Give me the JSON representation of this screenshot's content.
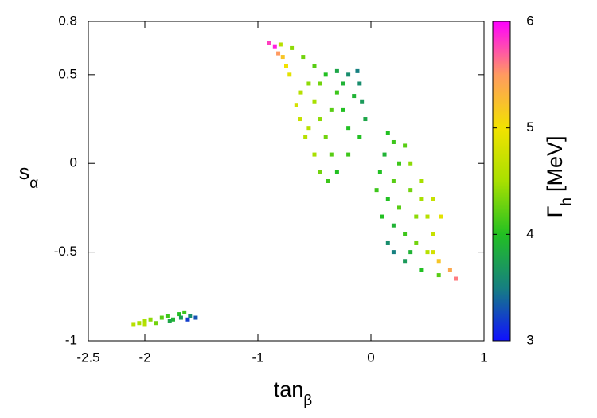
{
  "chart_data": {
    "type": "scatter",
    "xlabel": "tan",
    "xlabel_sub": "β",
    "ylabel": "s",
    "ylabel_sub": "α",
    "zlabel": "Γ",
    "zlabel_sub": "h",
    "zlabel_unit": "[MeV]",
    "xlim": [
      -2.5,
      1
    ],
    "xticks": [
      -2.5,
      -2,
      -1,
      0,
      1
    ],
    "ylim": [
      -1,
      0.8
    ],
    "yticks": [
      -1,
      -0.5,
      0,
      0.5,
      0.8
    ],
    "zlim": [
      3,
      6
    ],
    "zticks": [
      3,
      4,
      5,
      6
    ],
    "colormap": [
      {
        "value": 3,
        "color": "#1010ff"
      },
      {
        "value": 3.5,
        "color": "#168080"
      },
      {
        "value": 4,
        "color": "#22c022"
      },
      {
        "value": 4.5,
        "color": "#a8e000"
      },
      {
        "value": 5,
        "color": "#f2e200"
      },
      {
        "value": 5.5,
        "color": "#ff9a60"
      },
      {
        "value": 6,
        "color": "#ff00ff"
      }
    ],
    "series": [
      {
        "x": [
          -0.9,
          -0.85,
          -0.82,
          -0.78,
          -0.75,
          -0.72,
          -0.8,
          -0.7,
          -0.6,
          -0.5,
          -0.4,
          -0.3,
          -0.2,
          -0.12,
          -0.1,
          -0.08,
          -0.05,
          -0.1,
          -0.2,
          -0.3,
          -0.38,
          -0.45,
          -0.5,
          -0.58,
          -0.63,
          -0.66,
          -0.62,
          -0.55,
          -0.5,
          -0.45,
          -0.4,
          -0.35,
          -0.3,
          -0.25,
          -0.2,
          -0.35,
          -0.45,
          -0.15,
          -0.55,
          -0.25,
          0.15,
          0.2,
          0.3,
          0.35,
          0.45,
          0.55,
          0.62,
          0.55,
          0.5,
          0.6,
          0.7,
          0.75,
          0.6,
          0.45,
          0.3,
          0.2,
          0.15,
          0.1,
          0.05,
          0.08,
          0.12,
          0.2,
          0.25,
          0.3,
          0.4,
          0.35,
          0.25,
          0.4,
          0.5,
          0.15,
          0.45,
          0.2,
          0.35,
          0.55,
          -2.1,
          -2.05,
          -2.0,
          -1.95,
          -1.9,
          -1.85,
          -1.8,
          -1.75,
          -1.7,
          -1.65,
          -1.6,
          -1.55,
          -1.62,
          -1.68,
          -1.78,
          -2.0
        ],
        "y": [
          0.68,
          0.66,
          0.62,
          0.6,
          0.55,
          0.5,
          0.67,
          0.65,
          0.6,
          0.55,
          0.5,
          0.52,
          0.5,
          0.52,
          0.45,
          0.35,
          0.25,
          0.15,
          0.05,
          -0.05,
          -0.1,
          -0.05,
          0.05,
          0.15,
          0.25,
          0.33,
          0.4,
          0.45,
          0.35,
          0.25,
          0.15,
          0.3,
          0.4,
          0.3,
          0.2,
          0.05,
          0.45,
          0.38,
          0.2,
          0.45,
          0.17,
          0.12,
          0.1,
          0.0,
          -0.1,
          -0.2,
          -0.3,
          -0.4,
          -0.5,
          -0.55,
          -0.6,
          -0.65,
          -0.63,
          -0.6,
          -0.55,
          -0.5,
          -0.45,
          -0.3,
          -0.15,
          -0.05,
          0.05,
          -0.1,
          -0.25,
          -0.4,
          -0.3,
          -0.15,
          0.0,
          -0.45,
          -0.3,
          -0.2,
          -0.2,
          -0.35,
          -0.5,
          -0.5,
          -0.91,
          -0.9,
          -0.89,
          -0.88,
          -0.9,
          -0.87,
          -0.86,
          -0.88,
          -0.85,
          -0.84,
          -0.86,
          -0.87,
          -0.88,
          -0.87,
          -0.89,
          -0.91
        ],
        "z": [
          5.8,
          5.9,
          5.5,
          5.2,
          5.0,
          4.9,
          4.6,
          4.4,
          4.3,
          4.2,
          4.0,
          3.8,
          3.6,
          3.5,
          3.6,
          3.7,
          3.8,
          4.0,
          4.1,
          4.0,
          4.1,
          4.3,
          4.5,
          4.6,
          4.7,
          4.8,
          4.6,
          4.4,
          4.5,
          4.4,
          4.3,
          4.2,
          4.1,
          4.0,
          4.0,
          4.2,
          4.3,
          3.9,
          4.6,
          3.9,
          4.0,
          4.1,
          4.2,
          4.4,
          4.5,
          4.7,
          4.9,
          4.7,
          4.6,
          5.2,
          5.4,
          5.6,
          4.2,
          4.0,
          3.7,
          3.5,
          3.6,
          4.0,
          4.1,
          4.0,
          3.9,
          4.2,
          4.2,
          4.1,
          4.4,
          4.3,
          4.1,
          4.3,
          4.6,
          4.0,
          4.5,
          3.9,
          3.9,
          4.8,
          4.6,
          4.5,
          4.5,
          4.4,
          4.3,
          4.2,
          4.1,
          3.9,
          4.0,
          4.1,
          3.6,
          3.3,
          3.2,
          3.7,
          3.8,
          4.6
        ]
      }
    ]
  }
}
